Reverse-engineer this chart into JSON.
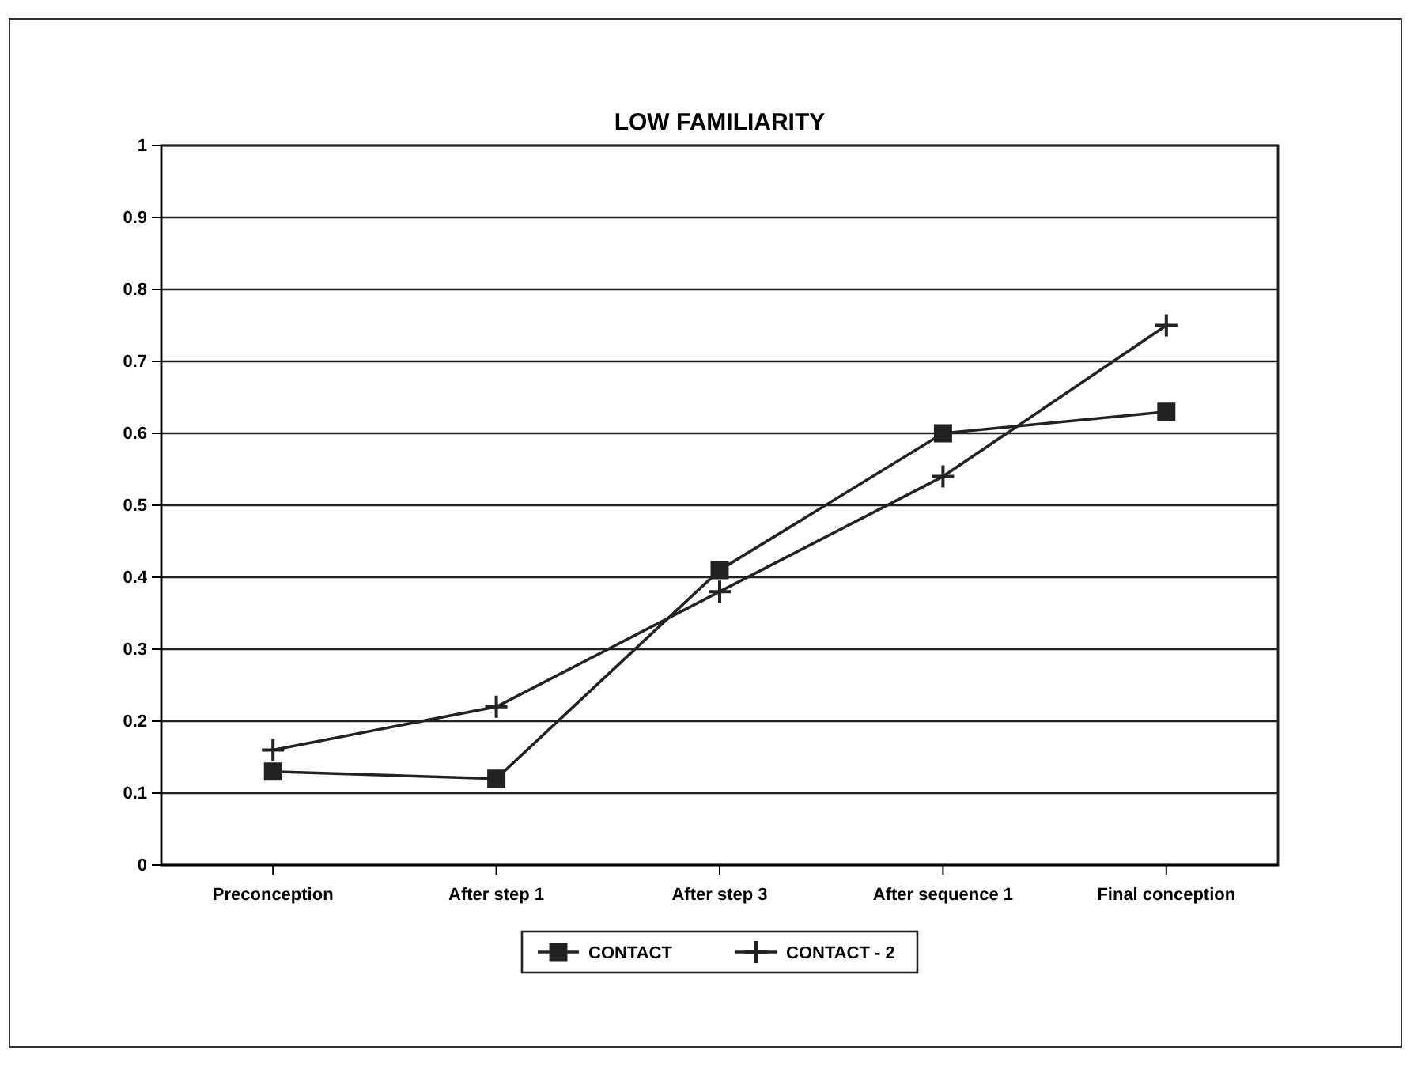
{
  "chart_data": {
    "type": "line",
    "title": "LOW FAMILIARITY",
    "categories": [
      "Preconception",
      "After step 1",
      "After step 3",
      "After sequence 1",
      "Final conception"
    ],
    "series": [
      {
        "name": "CONTACT",
        "color": "#222222",
        "marker": "square",
        "values": [
          0.13,
          0.12,
          0.41,
          0.6,
          0.63
        ]
      },
      {
        "name": "CONTACT - 2",
        "color": "#222222",
        "marker": "cross",
        "values": [
          0.16,
          0.22,
          0.38,
          0.54,
          0.75
        ]
      }
    ],
    "ylim": [
      0,
      1
    ],
    "yticks": [
      0,
      0.1,
      0.2,
      0.3,
      0.4,
      0.5,
      0.6,
      0.7,
      0.8,
      0.9,
      1
    ],
    "grid": "y",
    "legend": "bottom",
    "line_style": "solid"
  }
}
